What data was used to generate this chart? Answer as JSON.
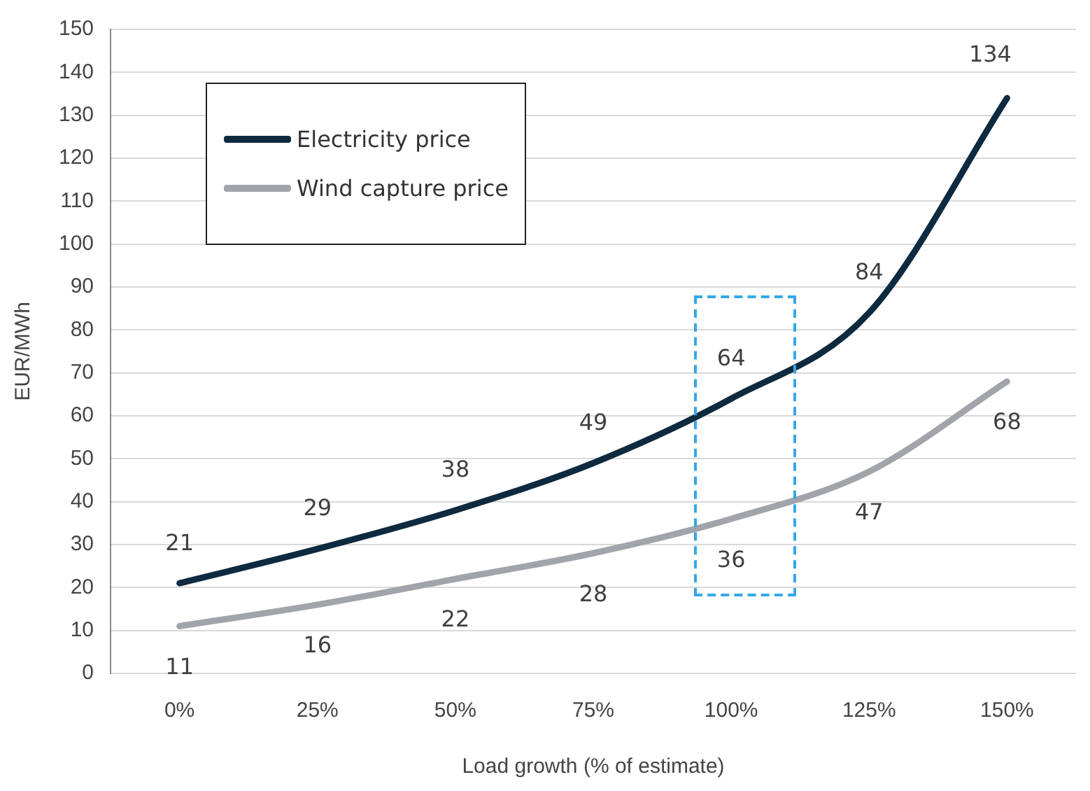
{
  "chart_data": {
    "type": "line",
    "xlabel": "Load growth (% of estimate)",
    "ylabel": "EUR/MWh",
    "categories": [
      "0%",
      "25%",
      "50%",
      "75%",
      "100%",
      "125%",
      "150%"
    ],
    "series": [
      {
        "name": "Electricity price",
        "color": "#0e2a3f",
        "values": [
          21,
          29,
          38,
          49,
          64,
          84,
          134
        ]
      },
      {
        "name": "Wind capture price",
        "color": "#a2a4ab",
        "values": [
          11,
          16,
          22,
          28,
          36,
          47,
          68
        ]
      }
    ],
    "ylim": [
      0,
      150
    ],
    "yticks": [
      0,
      10,
      20,
      30,
      40,
      50,
      60,
      70,
      80,
      90,
      100,
      110,
      120,
      130,
      140,
      150
    ],
    "grid": "y",
    "legend": "top left",
    "data_labels": true,
    "marker": "none",
    "line_style": "solid"
  }
}
